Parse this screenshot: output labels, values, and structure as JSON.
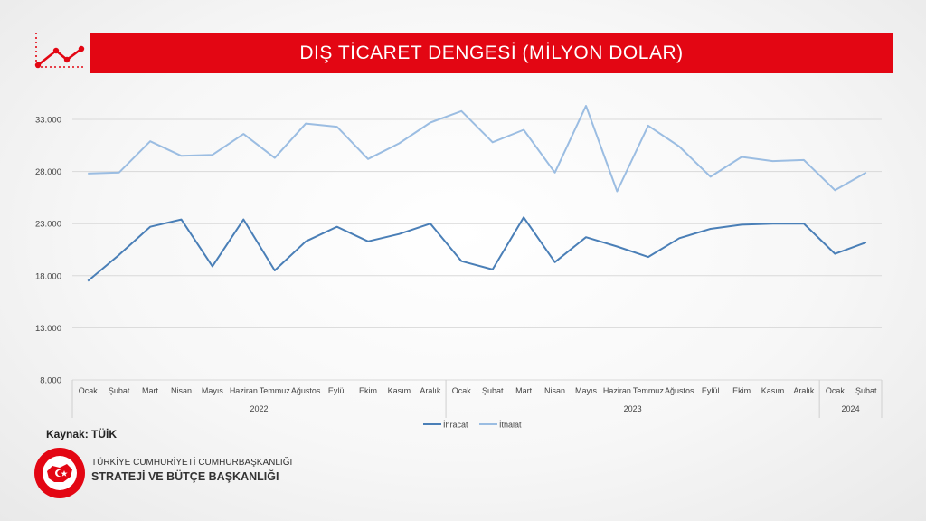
{
  "header": {
    "title": "DIŞ TİCARET DENGESİ (MİLYON DOLAR)"
  },
  "footer": {
    "source": "Kaynak: TÜİK",
    "org_line1": "TÜRKİYE CUMHURİYETİ CUMHURBAŞKANLIĞI",
    "org_line2": "STRATEJİ VE BÜTÇE BAŞKANLIĞI",
    "seal_text": "T.C. CUMHURBAŞKANLIĞI STRATEJİ VE BÜTÇE BAŞKANLIĞI"
  },
  "colors": {
    "brand_red": "#e30613",
    "ihracat": "#4a7fb7",
    "ithalat": "#9bbde2"
  },
  "chart_data": {
    "type": "line",
    "title": "DIŞ TİCARET DENGESİ (MİLYON DOLAR)",
    "categories": [
      "Ocak",
      "Şubat",
      "Mart",
      "Nisan",
      "Mayıs",
      "Haziran",
      "Temmuz",
      "Ağustos",
      "Eylül",
      "Ekim",
      "Kasım",
      "Aralık",
      "Ocak",
      "Şubat",
      "Mart",
      "Nisan",
      "Mayıs",
      "Haziran",
      "Temmuz",
      "Ağustos",
      "Eylül",
      "Ekim",
      "Kasım",
      "Aralık",
      "Ocak",
      "Şubat"
    ],
    "year_groups": [
      {
        "label": "2022",
        "count": 12
      },
      {
        "label": "2023",
        "count": 12
      },
      {
        "label": "2024",
        "count": 2
      }
    ],
    "yticks": [
      "8.000",
      "13.000",
      "18.000",
      "23.000",
      "28.000",
      "33.000"
    ],
    "ytick_values": [
      8000,
      13000,
      18000,
      23000,
      28000,
      33000
    ],
    "ylim": [
      8000,
      35000
    ],
    "grid": true,
    "legend_position": "bottom-center",
    "series": [
      {
        "name": "İhracat",
        "values": [
          17500,
          20000,
          22700,
          23400,
          18900,
          23400,
          18500,
          21300,
          22700,
          21300,
          22000,
          23000,
          19400,
          18600,
          23600,
          19300,
          21700,
          20800,
          19800,
          21600,
          22500,
          22900,
          23000,
          23000,
          20100,
          21200
        ]
      },
      {
        "name": "İthalat",
        "values": [
          27800,
          27900,
          30900,
          29500,
          29600,
          31600,
          29300,
          32600,
          32300,
          29200,
          30700,
          32700,
          33800,
          30800,
          32000,
          27900,
          34300,
          26100,
          32400,
          30400,
          27500,
          29400,
          29000,
          29100,
          26200,
          27900
        ]
      }
    ]
  }
}
